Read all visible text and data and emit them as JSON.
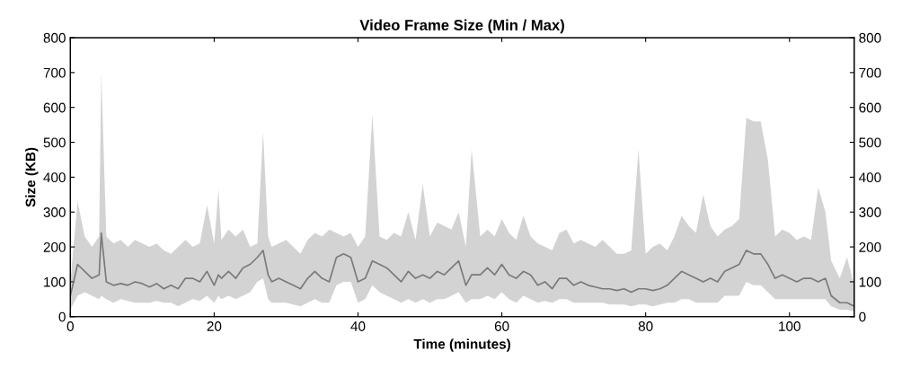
{
  "chart_data": {
    "type": "line",
    "title": "Video Frame Size (Min / Max)",
    "xlabel": "Time (minutes)",
    "ylabel": "Size (KB)",
    "xlim": [
      0,
      109
    ],
    "xticks": [
      0,
      20,
      40,
      60,
      80,
      100
    ],
    "ylim": [
      0,
      800
    ],
    "yticks": [
      0,
      100,
      200,
      300,
      400,
      500,
      600,
      700,
      800
    ],
    "y2lim": [
      0,
      800
    ],
    "y2ticks": [
      0,
      100,
      200,
      300,
      400,
      500,
      600,
      700,
      800
    ],
    "grid": false,
    "legend": false,
    "series": [
      {
        "color": "#7a7a7a",
        "x": [
          0,
          1,
          2,
          3,
          4,
          4.3,
          5,
          6,
          7,
          8,
          9,
          10,
          11,
          12,
          13,
          14,
          15,
          16,
          17,
          18,
          19,
          20,
          20.6,
          21,
          22,
          23,
          24,
          25,
          26,
          26.8,
          27.5,
          28,
          29,
          30,
          31,
          32,
          33,
          34,
          35,
          36,
          37,
          38,
          39,
          40,
          41,
          42,
          43,
          44,
          45,
          46,
          47,
          48,
          49,
          50,
          51,
          52,
          53,
          54,
          55,
          55.8,
          57,
          58,
          59,
          60,
          61,
          62,
          63,
          64,
          65,
          66,
          67,
          68,
          69,
          70,
          71,
          72,
          73,
          74,
          75,
          76,
          77,
          78,
          79,
          80,
          81,
          82,
          83,
          84,
          85,
          86,
          87,
          88,
          89,
          90,
          91,
          92,
          93,
          94,
          95,
          96,
          97,
          98,
          99,
          100,
          101,
          102,
          103,
          104,
          105,
          105.8,
          107,
          108,
          109
        ],
        "upper": [
          100,
          330,
          230,
          200,
          230,
          700,
          230,
          210,
          220,
          200,
          220,
          210,
          200,
          210,
          190,
          180,
          200,
          220,
          200,
          210,
          320,
          210,
          365,
          220,
          250,
          230,
          250,
          200,
          210,
          530,
          230,
          200,
          210,
          220,
          200,
          180,
          220,
          240,
          230,
          250,
          240,
          230,
          240,
          200,
          230,
          580,
          230,
          220,
          240,
          230,
          300,
          220,
          380,
          230,
          270,
          260,
          250,
          300,
          200,
          480,
          230,
          250,
          230,
          280,
          240,
          220,
          290,
          230,
          210,
          200,
          190,
          240,
          250,
          210,
          220,
          210,
          200,
          220,
          200,
          180,
          180,
          190,
          480,
          180,
          200,
          210,
          190,
          230,
          290,
          260,
          240,
          350,
          260,
          230,
          250,
          260,
          280,
          570,
          560,
          560,
          450,
          230,
          250,
          240,
          220,
          230,
          220,
          370,
          300,
          160,
          110,
          170,
          90
        ],
        "values": [
          60,
          150,
          130,
          110,
          120,
          240,
          100,
          90,
          95,
          90,
          100,
          95,
          85,
          95,
          80,
          90,
          80,
          110,
          110,
          100,
          130,
          90,
          120,
          110,
          130,
          110,
          140,
          150,
          170,
          190,
          120,
          100,
          110,
          100,
          90,
          80,
          110,
          130,
          110,
          100,
          170,
          180,
          170,
          100,
          110,
          160,
          150,
          140,
          120,
          100,
          130,
          110,
          120,
          110,
          130,
          120,
          140,
          160,
          90,
          120,
          120,
          140,
          120,
          150,
          120,
          110,
          130,
          120,
          90,
          100,
          80,
          110,
          110,
          90,
          100,
          90,
          85,
          80,
          80,
          75,
          80,
          70,
          80,
          80,
          75,
          80,
          90,
          110,
          130,
          120,
          110,
          100,
          110,
          100,
          130,
          140,
          150,
          190,
          180,
          180,
          150,
          110,
          120,
          110,
          100,
          110,
          110,
          100,
          110,
          60,
          40,
          40,
          30
        ],
        "lower": [
          20,
          60,
          70,
          60,
          50,
          60,
          50,
          40,
          50,
          45,
          40,
          40,
          40,
          45,
          40,
          40,
          30,
          40,
          50,
          45,
          60,
          40,
          60,
          50,
          60,
          50,
          60,
          70,
          100,
          110,
          50,
          40,
          40,
          40,
          35,
          30,
          40,
          50,
          40,
          40,
          90,
          100,
          100,
          40,
          50,
          90,
          70,
          60,
          50,
          40,
          50,
          40,
          50,
          40,
          50,
          50,
          60,
          70,
          40,
          50,
          50,
          60,
          50,
          70,
          50,
          40,
          60,
          50,
          40,
          45,
          40,
          50,
          50,
          40,
          40,
          40,
          40,
          40,
          35,
          35,
          35,
          30,
          35,
          35,
          30,
          35,
          40,
          40,
          50,
          50,
          40,
          40,
          40,
          40,
          60,
          60,
          60,
          100,
          90,
          90,
          70,
          50,
          50,
          50,
          50,
          50,
          50,
          50,
          50,
          30,
          20,
          20,
          15
        ]
      }
    ]
  }
}
